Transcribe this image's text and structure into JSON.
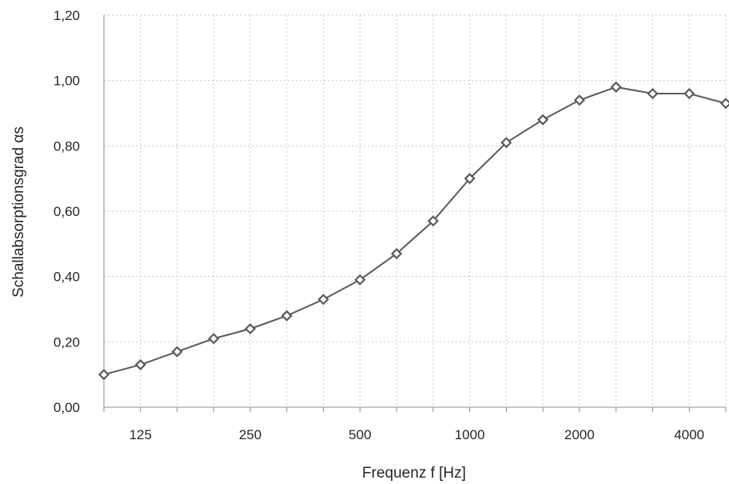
{
  "chart_data": {
    "type": "line",
    "xlabel": "Frequenz f [Hz]",
    "ylabel": "Schallabsorptionsgrad αs",
    "ylim": [
      0,
      1.2
    ],
    "yticks": [
      "0,00",
      "0,20",
      "0,40",
      "0,60",
      "0,80",
      "1,00",
      "1,20"
    ],
    "x_tick_labels": [
      "125",
      "250",
      "500",
      "1000",
      "2000",
      "4000"
    ],
    "x_scale": "log (third-octave bands)",
    "grid": true,
    "series": [
      {
        "x": [
          100,
          125,
          160,
          200,
          250,
          315,
          400,
          500,
          630,
          800,
          1000,
          1250,
          1600,
          2000,
          2500,
          3150,
          4000,
          5000
        ],
        "values": [
          0.1,
          0.13,
          0.17,
          0.21,
          0.24,
          0.28,
          0.33,
          0.39,
          0.47,
          0.57,
          0.7,
          0.81,
          0.88,
          0.94,
          0.98,
          0.96,
          0.96,
          0.93
        ],
        "color": "#5a5a5a",
        "marker": "diamond"
      }
    ]
  }
}
